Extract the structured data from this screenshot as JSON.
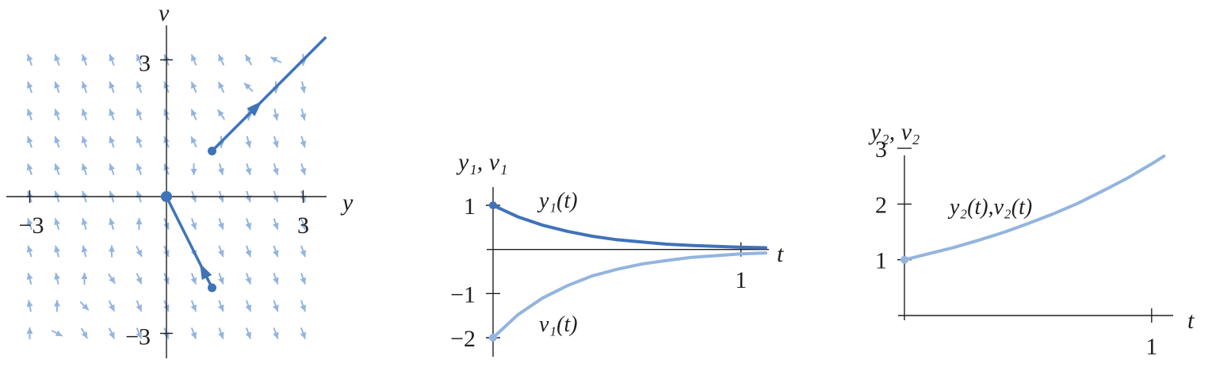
{
  "colors": {
    "dark_blue": "#3f73b8",
    "light_blue": "#93b4df",
    "axis": "#231f20"
  },
  "chart_data": [
    {
      "type": "phase-portrait",
      "xlabel": "y",
      "ylabel": "v",
      "xlim": [
        -3.4,
        3.4
      ],
      "ylim": [
        -3.4,
        3.4
      ],
      "x_ticks": [
        {
          "value": -3,
          "label": "−3"
        },
        {
          "value": 3,
          "label": "3"
        }
      ],
      "y_ticks": [
        {
          "value": 3,
          "label": "3"
        },
        {
          "value": -3,
          "label": "−3"
        }
      ],
      "vector_field": {
        "x_range": [
          -3,
          3
        ],
        "y_range": [
          -3,
          3
        ],
        "spacing": 0.6
      },
      "equilibrium": [
        0,
        0
      ],
      "trajectories": [
        {
          "start": [
            1,
            1
          ],
          "end": [
            3.5,
            3.5
          ],
          "arrow_at": 1.55,
          "arrow_direction": "away-from-origin"
        },
        {
          "start": [
            1,
            -2
          ],
          "end": [
            0,
            0
          ],
          "arrow_at": 0.6,
          "arrow_direction": "toward-origin"
        }
      ]
    },
    {
      "type": "line",
      "xlabel": "t",
      "ylabel": "y₁, v₁",
      "xlim": [
        0,
        1.1
      ],
      "ylim": [
        -2,
        1
      ],
      "x_ticks": [
        {
          "value": 1,
          "label": "1"
        }
      ],
      "y_ticks": [
        {
          "value": 1,
          "label": "1"
        },
        {
          "value": -1,
          "label": "−1"
        },
        {
          "value": -2,
          "label": "−2"
        }
      ],
      "series": [
        {
          "name": "y₁(t)",
          "color": "#3f73b8",
          "x": [
            0,
            0.1,
            0.2,
            0.3,
            0.4,
            0.5,
            0.6,
            0.7,
            0.8,
            0.9,
            1.0,
            1.1
          ],
          "y": [
            1.0,
            0.74,
            0.55,
            0.41,
            0.3,
            0.22,
            0.17,
            0.12,
            0.09,
            0.07,
            0.05,
            0.04
          ]
        },
        {
          "name": "v₁(t)",
          "color": "#93b4df",
          "x": [
            0,
            0.1,
            0.2,
            0.3,
            0.4,
            0.5,
            0.6,
            0.7,
            0.8,
            0.9,
            1.0,
            1.1
          ],
          "y": [
            -2.0,
            -1.48,
            -1.1,
            -0.82,
            -0.6,
            -0.45,
            -0.33,
            -0.25,
            -0.18,
            -0.14,
            -0.1,
            -0.08
          ]
        }
      ]
    },
    {
      "type": "line",
      "xlabel": "t",
      "ylabel": "y₂, v₂",
      "xlim": [
        0,
        1.1
      ],
      "ylim": [
        0,
        3.3
      ],
      "x_ticks": [
        {
          "value": 1,
          "label": "1"
        }
      ],
      "y_ticks": [
        {
          "value": 1,
          "label": "1"
        },
        {
          "value": 2,
          "label": "2"
        },
        {
          "value": 3,
          "label": "3"
        }
      ],
      "series": [
        {
          "name": "y₂(t),v₂(t)",
          "color": "#93b4df",
          "x": [
            0,
            0.1,
            0.2,
            0.3,
            0.4,
            0.5,
            0.6,
            0.7,
            0.8,
            0.9,
            1.0,
            1.05
          ],
          "y": [
            1.0,
            1.11,
            1.22,
            1.35,
            1.49,
            1.65,
            1.82,
            2.01,
            2.23,
            2.46,
            2.72,
            2.86
          ]
        }
      ]
    }
  ]
}
